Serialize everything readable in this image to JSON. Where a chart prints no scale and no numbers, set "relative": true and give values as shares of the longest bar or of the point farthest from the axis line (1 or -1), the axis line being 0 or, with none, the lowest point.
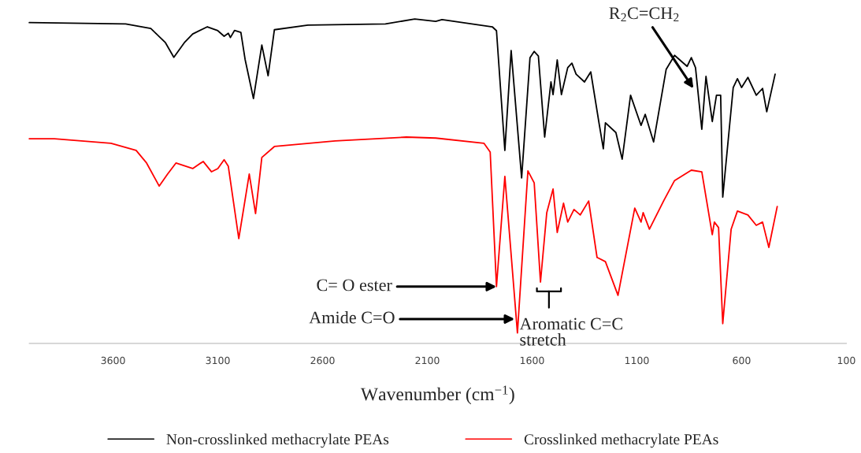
{
  "chart_data": {
    "type": "line",
    "relative": true,
    "xlabel": "Wavenumber (cm$^{−1}$)",
    "xlim": [
      4000,
      100
    ],
    "xticks": [
      3600,
      3100,
      2600,
      2100,
      1600,
      1100,
      600,
      100
    ],
    "grid": false,
    "legend": "bottom",
    "marker": "none",
    "line_style": "solid",
    "series": [
      {
        "name": "Non-crosslinked methacrylate PEAs",
        "color": "#000000",
        "x": [
          4000,
          3540,
          3420,
          3350,
          3310,
          3260,
          3220,
          3150,
          3100,
          3070,
          3050,
          3040,
          3020,
          2990,
          2970,
          2930,
          2890,
          2860,
          2830,
          2670,
          2300,
          2160,
          2060,
          2030,
          1790,
          1770,
          1730,
          1700,
          1650,
          1610,
          1590,
          1570,
          1540,
          1510,
          1500,
          1480,
          1460,
          1430,
          1410,
          1390,
          1350,
          1320,
          1280,
          1260,
          1250,
          1200,
          1170,
          1130,
          1080,
          1060,
          1020,
          960,
          920,
          860,
          840,
          820,
          790,
          770,
          740,
          720,
          700,
          690,
          640,
          620,
          600,
          570,
          530,
          500,
          480,
          440
        ],
        "values": [
          0.989,
          0.985,
          0.971,
          0.927,
          0.882,
          0.927,
          0.954,
          0.976,
          0.964,
          0.947,
          0.956,
          0.943,
          0.965,
          0.959,
          0.876,
          0.755,
          0.92,
          0.825,
          0.967,
          0.981,
          0.985,
          1.0,
          0.993,
          0.998,
          0.976,
          0.964,
          0.595,
          0.903,
          0.51,
          0.881,
          0.9,
          0.886,
          0.636,
          0.806,
          0.767,
          0.874,
          0.767,
          0.85,
          0.864,
          0.83,
          0.806,
          0.837,
          0.677,
          0.6,
          0.68,
          0.65,
          0.568,
          0.765,
          0.672,
          0.706,
          0.621,
          0.845,
          0.888,
          0.854,
          0.881,
          0.85,
          0.66,
          0.823,
          0.684,
          0.765,
          0.765,
          0.451,
          0.789,
          0.816,
          0.789,
          0.82,
          0.765,
          0.786,
          0.714,
          0.83
        ]
      },
      {
        "name": "Crosslinked methacrylate PEAs",
        "color": "#ff0000",
        "x": [
          4000,
          3880,
          3610,
          3490,
          3440,
          3380,
          3340,
          3300,
          3220,
          3170,
          3130,
          3100,
          3070,
          3050,
          3000,
          2950,
          2920,
          2890,
          2830,
          2540,
          2200,
          2060,
          1830,
          1800,
          1770,
          1730,
          1670,
          1620,
          1590,
          1560,
          1530,
          1500,
          1480,
          1450,
          1430,
          1400,
          1370,
          1330,
          1290,
          1250,
          1190,
          1110,
          1080,
          1070,
          1040,
          970,
          920,
          840,
          790,
          740,
          730,
          710,
          690,
          650,
          620,
          570,
          530,
          500,
          470,
          430
        ],
        "values": [
          0.631,
          0.631,
          0.617,
          0.595,
          0.556,
          0.485,
          0.522,
          0.556,
          0.539,
          0.561,
          0.529,
          0.539,
          0.566,
          0.546,
          0.323,
          0.522,
          0.4,
          0.573,
          0.607,
          0.624,
          0.636,
          0.633,
          0.617,
          0.59,
          0.175,
          0.515,
          0.032,
          0.532,
          0.495,
          0.189,
          0.403,
          0.476,
          0.342,
          0.432,
          0.374,
          0.413,
          0.396,
          0.439,
          0.265,
          0.252,
          0.148,
          0.417,
          0.374,
          0.403,
          0.352,
          0.442,
          0.502,
          0.534,
          0.529,
          0.335,
          0.374,
          0.357,
          0.061,
          0.352,
          0.408,
          0.396,
          0.364,
          0.374,
          0.296,
          0.422
        ]
      }
    ],
    "annotations": [
      {
        "text": "R$_{2}$C=CH$_{2}$",
        "x": 830,
        "y": 0.786
      },
      {
        "text": "C= O ester",
        "x": 1770,
        "y": 0.175
      },
      "Amide C=O",
      "Aromatic C=C\nstretch"
    ]
  }
}
